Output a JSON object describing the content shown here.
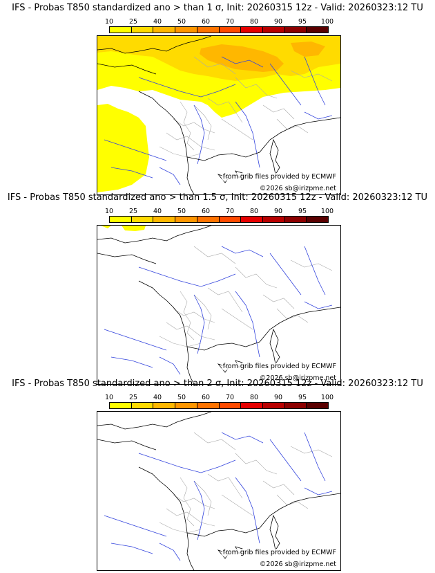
{
  "panels": [
    {
      "title": "IFS - Probas T850  standardized ano > than 1 σ, Init: 20260315 12z - Valid: 20260323:12 TU",
      "threshold": "1 σ",
      "coverage": "high"
    },
    {
      "title": "IFS - Probas T850  standardized ano > than 1.5 σ, Init: 20260315 12z - Valid: 20260323:12 TU",
      "threshold": "1.5 σ",
      "coverage": "low"
    },
    {
      "title": "IFS - Probas T850  standardized ano > than 2 σ, Init: 20260315 12z - Valid: 20260323:12 TU",
      "threshold": "2 σ",
      "coverage": "none"
    }
  ],
  "scale": {
    "labels": [
      "10",
      "25",
      "40",
      "50",
      "60",
      "70",
      "80",
      "90",
      "95",
      "100"
    ],
    "colors": [
      "#ffff00",
      "#ffdb00",
      "#ffb700",
      "#ff9600",
      "#ff7300",
      "#ff4a00",
      "#e60000",
      "#b80000",
      "#8c0000",
      "#5a0000"
    ]
  },
  "credits": {
    "grib": "from grib files provided by ECMWF",
    "copyright": "©2026 sb@irizpme.net"
  },
  "map_colors": {
    "coast": "#000000",
    "rivers": "#3344dd",
    "borders": "#aaaaaa"
  }
}
